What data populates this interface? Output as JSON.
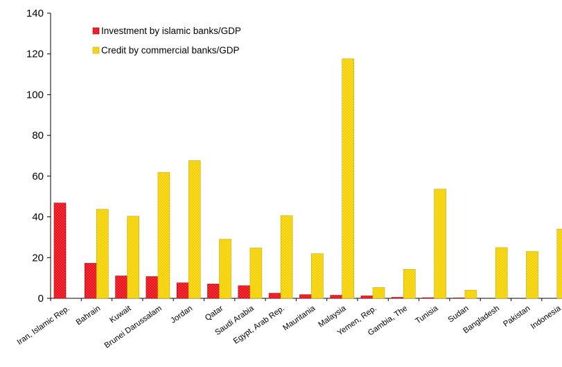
{
  "chart_data": {
    "type": "bar",
    "title": "",
    "xlabel": "",
    "ylabel": "",
    "ylim": [
      0,
      140
    ],
    "yticks": [
      0,
      20,
      40,
      60,
      80,
      100,
      120,
      140
    ],
    "grid": false,
    "legend_position": "top-left",
    "categories": [
      "Iran, Islamic Rep.",
      "Bahrain",
      "Kuwait",
      "Brunei Darussalam",
      "Jordan",
      "Qatar",
      "Saudi Arabia",
      "Egypt, Arab Rep.",
      "Mauritania",
      "Malaysia",
      "Yemen, Rep.",
      "Gambia, The",
      "Tunisia",
      "Sudan",
      "Bangladesh",
      "Pakistan",
      "Indonesia"
    ],
    "series": [
      {
        "name": "Investment by islamic banks/GDP",
        "color": "#e8101a",
        "values": [
          46.8,
          17.2,
          11.0,
          10.7,
          7.6,
          7.0,
          6.2,
          2.5,
          1.8,
          1.5,
          1.2,
          0.5,
          0.3,
          0.2,
          0,
          0,
          0
        ]
      },
      {
        "name": "Credit by commercial banks/GDP",
        "color": "#f5d000",
        "values": [
          0,
          43.7,
          40.3,
          61.8,
          67.6,
          29.0,
          24.7,
          40.6,
          21.9,
          117.6,
          5.3,
          14.2,
          53.6,
          4.0,
          24.9,
          23.0,
          34.0
        ]
      }
    ]
  }
}
